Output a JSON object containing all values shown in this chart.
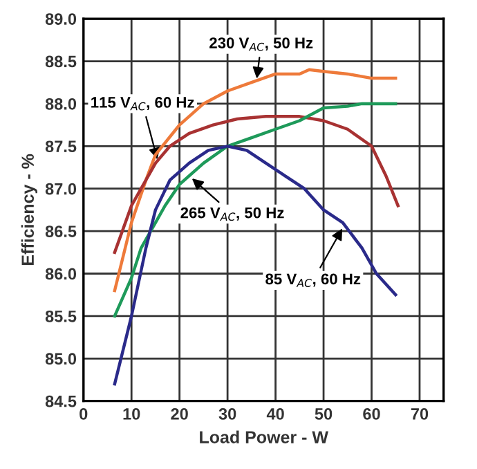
{
  "chart_data": {
    "type": "line",
    "xlabel": "Load Power - W",
    "ylabel": "Efficiency - %",
    "xlim": [
      0,
      75
    ],
    "xticks": [
      0,
      10,
      20,
      30,
      40,
      50,
      60,
      70
    ],
    "ylim": [
      84.5,
      89.0
    ],
    "yticks": [
      {
        "value": 84.5,
        "label": "84.5"
      },
      {
        "value": 85.0,
        "label": "85.0"
      },
      {
        "value": 85.5,
        "label": "85.5"
      },
      {
        "value": 86.0,
        "label": "86.0"
      },
      {
        "value": 86.5,
        "label": "86.5"
      },
      {
        "value": 87.0,
        "label": "87.0"
      },
      {
        "value": 87.5,
        "label": "87.5"
      },
      {
        "value": 88.0,
        "label": "88.0"
      },
      {
        "value": 88.5,
        "label": "88.5"
      },
      {
        "value": 89.0,
        "label": "89.0"
      }
    ],
    "grid": true,
    "legend": false,
    "series": [
      {
        "color": "#ee7a3a",
        "x": [
          6.5,
          10,
          13,
          15,
          20,
          25,
          30,
          35,
          40,
          45,
          47,
          50,
          55,
          60,
          65
        ],
        "values": [
          85.8,
          86.6,
          87.1,
          87.4,
          87.75,
          88.0,
          88.15,
          88.25,
          88.35,
          88.35,
          88.4,
          88.38,
          88.35,
          88.3,
          88.3
        ]
      },
      {
        "color": "#a83232",
        "x": [
          6.5,
          10,
          13,
          15,
          18,
          22,
          27,
          32,
          38,
          45,
          50,
          55,
          60,
          63,
          65.5
        ],
        "values": [
          86.25,
          86.8,
          87.1,
          87.3,
          87.5,
          87.65,
          87.75,
          87.82,
          87.85,
          87.85,
          87.8,
          87.7,
          87.5,
          87.15,
          86.8
        ]
      },
      {
        "color": "#1e9a5a",
        "x": [
          6.5,
          10,
          12,
          15,
          17,
          20,
          25,
          30,
          35,
          40,
          45,
          50,
          55,
          58,
          65
        ],
        "values": [
          85.5,
          85.95,
          86.3,
          86.6,
          86.8,
          87.05,
          87.3,
          87.5,
          87.6,
          87.7,
          87.8,
          87.95,
          87.97,
          88.0,
          88.0
        ]
      },
      {
        "color": "#2a2a8a",
        "x": [
          6.5,
          10,
          13,
          15,
          18,
          22,
          26,
          30,
          34,
          38,
          42,
          46,
          50,
          54,
          58,
          61,
          65
        ],
        "values": [
          84.7,
          85.5,
          86.3,
          86.75,
          87.1,
          87.3,
          87.45,
          87.5,
          87.45,
          87.3,
          87.15,
          87.0,
          86.75,
          86.6,
          86.3,
          86.0,
          85.75
        ]
      }
    ],
    "annotations": [
      {
        "text": "230 V$_{AC}$, 50 Hz",
        "x": 36,
        "y": 88.25
      },
      {
        "text": "115 V$_{AC}$, 60 Hz",
        "x": 15.6,
        "y": 87.3
      },
      {
        "text": "265 V$_{AC}$, 50 Hz",
        "x": 22,
        "y": 87.15
      },
      {
        "text": "85 V$_{AC}$, 60 Hz",
        "x": 54.3,
        "y": 86.57
      }
    ]
  }
}
